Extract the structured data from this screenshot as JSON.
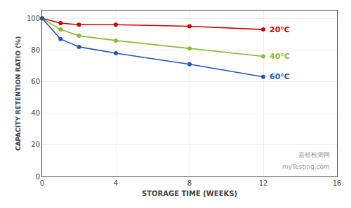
{
  "chart_data": {
    "type": "line",
    "xlabel": "STORAGE TIME (WEEKS)",
    "ylabel": "CAPACITY RETENTION RATIO (%)",
    "x": [
      0,
      1,
      2,
      4,
      8,
      12
    ],
    "series": [
      {
        "name": "20°C",
        "color": "#cc0000",
        "values": [
          100,
          97,
          96,
          96,
          95,
          93
        ]
      },
      {
        "name": "40°C",
        "color": "#88bb33",
        "values": [
          100,
          93,
          89,
          86,
          81,
          76
        ]
      },
      {
        "name": "60°C",
        "color": "#2255bb",
        "values": [
          100,
          87,
          82,
          78,
          71,
          63
        ]
      }
    ],
    "xlim": [
      0,
      16
    ],
    "ylim": [
      0,
      105
    ],
    "xticks": [
      0,
      4,
      8,
      12,
      16
    ],
    "yticks": [
      0,
      20,
      40,
      60,
      80,
      100
    ],
    "grid": true,
    "marker": "circle",
    "annotations": [
      "嘉裕检测网",
      "myTesting.com"
    ]
  }
}
